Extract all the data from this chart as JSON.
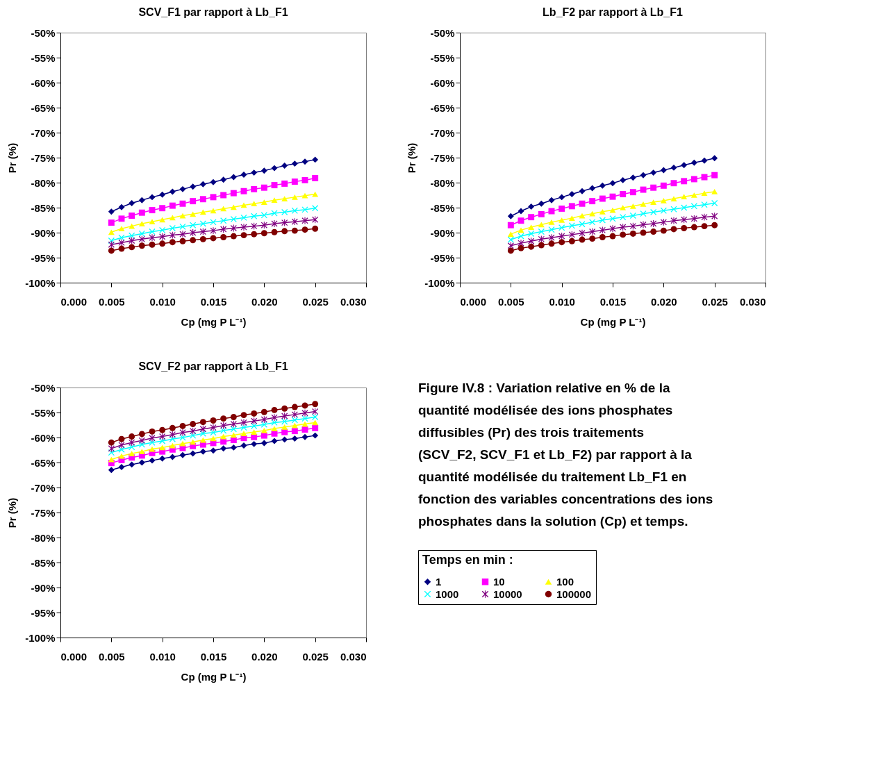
{
  "chart_data": [
    {
      "type": "line",
      "title": "SCV_F1 par rapport à Lb_F1",
      "xlabel": "Cp (mg P L⁻¹)",
      "ylabel": "Pr (%)",
      "grid": false,
      "legend": false,
      "line_style": "solid",
      "x": [
        0.005,
        0.006,
        0.007,
        0.008,
        0.009,
        0.01,
        0.011,
        0.012,
        0.013,
        0.014,
        0.015,
        0.016,
        0.017,
        0.018,
        0.019,
        0.02,
        0.021,
        0.022,
        0.023,
        0.024,
        0.025
      ],
      "xlim": [
        0,
        0.03
      ],
      "xticks": [
        {
          "value": 0,
          "label": "0.000"
        },
        {
          "value": 0.005,
          "label": "0.005"
        },
        {
          "value": 0.01,
          "label": "0.010"
        },
        {
          "value": 0.015,
          "label": "0.015"
        },
        {
          "value": 0.02,
          "label": "0.020"
        },
        {
          "value": 0.025,
          "label": "0.025"
        },
        {
          "value": 0.03,
          "label": "0.030"
        }
      ],
      "ylim": [
        -100,
        -50
      ],
      "yticks": [
        {
          "value": -100,
          "label": "-100%"
        },
        {
          "value": -95,
          "label": "-95%"
        },
        {
          "value": -90,
          "label": "-90%"
        },
        {
          "value": -85,
          "label": "-85%"
        },
        {
          "value": -80,
          "label": "-80%"
        },
        {
          "value": -75,
          "label": "-75%"
        },
        {
          "value": -70,
          "label": "-70%"
        },
        {
          "value": -65,
          "label": "-65%"
        },
        {
          "value": -60,
          "label": "-60%"
        },
        {
          "value": -55,
          "label": "-55%"
        },
        {
          "value": -50,
          "label": "-50%"
        }
      ],
      "series": [
        {
          "color": "#000080",
          "marker": "diamond",
          "values": [
            -85.8,
            -84.9,
            -84.1,
            -83.5,
            -82.9,
            -82.4,
            -81.8,
            -81.3,
            -80.8,
            -80.3,
            -79.9,
            -79.4,
            -78.9,
            -78.4,
            -78.0,
            -77.6,
            -77.1,
            -76.6,
            -76.2,
            -75.8,
            -75.4
          ]
        },
        {
          "color": "#ff00ff",
          "marker": "square",
          "values": [
            -88.0,
            -87.2,
            -86.6,
            -86.0,
            -85.5,
            -85.1,
            -84.6,
            -84.2,
            -83.7,
            -83.3,
            -82.9,
            -82.5,
            -82.1,
            -81.7,
            -81.3,
            -81.0,
            -80.5,
            -80.2,
            -79.8,
            -79.5,
            -79.1
          ]
        },
        {
          "color": "#ffff00",
          "marker": "triangle",
          "values": [
            -89.9,
            -89.2,
            -88.7,
            -88.2,
            -87.8,
            -87.4,
            -87.0,
            -86.6,
            -86.3,
            -85.9,
            -85.6,
            -85.2,
            -84.9,
            -84.5,
            -84.2,
            -83.9,
            -83.5,
            -83.2,
            -82.9,
            -82.6,
            -82.3
          ]
        },
        {
          "color": "#00ffff",
          "marker": "cross",
          "values": [
            -91.6,
            -91.0,
            -90.6,
            -90.2,
            -89.8,
            -89.5,
            -89.1,
            -88.8,
            -88.5,
            -88.2,
            -87.9,
            -87.6,
            -87.3,
            -87.0,
            -86.7,
            -86.5,
            -86.1,
            -85.9,
            -85.6,
            -85.4,
            -85.1
          ]
        },
        {
          "color": "#800080",
          "marker": "star",
          "values": [
            -92.4,
            -92.0,
            -91.6,
            -91.3,
            -91.0,
            -90.8,
            -90.5,
            -90.3,
            -90.0,
            -89.8,
            -89.6,
            -89.3,
            -89.1,
            -88.9,
            -88.7,
            -88.5,
            -88.2,
            -88.0,
            -87.8,
            -87.6,
            -87.4
          ]
        },
        {
          "color": "#800000",
          "marker": "circle",
          "values": [
            -93.6,
            -93.2,
            -92.9,
            -92.6,
            -92.4,
            -92.2,
            -91.9,
            -91.7,
            -91.5,
            -91.3,
            -91.1,
            -90.9,
            -90.7,
            -90.5,
            -90.3,
            -90.1,
            -89.9,
            -89.7,
            -89.6,
            -89.4,
            -89.2
          ]
        }
      ]
    },
    {
      "type": "line",
      "title": "Lb_F2 par rapport à Lb_F1",
      "xlabel": "Cp (mg P L⁻¹)",
      "ylabel": "Pr (%)",
      "grid": false,
      "legend": false,
      "line_style": "solid",
      "x": [
        0.005,
        0.006,
        0.007,
        0.008,
        0.009,
        0.01,
        0.011,
        0.012,
        0.013,
        0.014,
        0.015,
        0.016,
        0.017,
        0.018,
        0.019,
        0.02,
        0.021,
        0.022,
        0.023,
        0.024,
        0.025
      ],
      "xlim": [
        0,
        0.03
      ],
      "xticks": [
        {
          "value": 0,
          "label": "0.000"
        },
        {
          "value": 0.005,
          "label": "0.005"
        },
        {
          "value": 0.01,
          "label": "0.010"
        },
        {
          "value": 0.015,
          "label": "0.015"
        },
        {
          "value": 0.02,
          "label": "0.020"
        },
        {
          "value": 0.025,
          "label": "0.025"
        },
        {
          "value": 0.03,
          "label": "0.030"
        }
      ],
      "ylim": [
        -100,
        -50
      ],
      "yticks": [
        {
          "value": -100,
          "label": "-100%"
        },
        {
          "value": -95,
          "label": "-95%"
        },
        {
          "value": -90,
          "label": "-90%"
        },
        {
          "value": -85,
          "label": "-85%"
        },
        {
          "value": -80,
          "label": "-80%"
        },
        {
          "value": -75,
          "label": "-75%"
        },
        {
          "value": -70,
          "label": "-70%"
        },
        {
          "value": -65,
          "label": "-65%"
        },
        {
          "value": -60,
          "label": "-60%"
        },
        {
          "value": -55,
          "label": "-55%"
        },
        {
          "value": -50,
          "label": "-50%"
        }
      ],
      "series": [
        {
          "color": "#000080",
          "marker": "diamond",
          "values": [
            -86.7,
            -85.7,
            -84.8,
            -84.2,
            -83.5,
            -82.9,
            -82.3,
            -81.7,
            -81.1,
            -80.6,
            -80.1,
            -79.5,
            -79.0,
            -78.5,
            -78.0,
            -77.5,
            -77.0,
            -76.5,
            -76.0,
            -75.6,
            -75.1
          ]
        },
        {
          "color": "#ff00ff",
          "marker": "square",
          "values": [
            -88.5,
            -87.6,
            -86.9,
            -86.3,
            -85.7,
            -85.2,
            -84.7,
            -84.2,
            -83.7,
            -83.2,
            -82.8,
            -82.3,
            -81.9,
            -81.4,
            -81.0,
            -80.6,
            -80.1,
            -79.7,
            -79.3,
            -78.9,
            -78.5
          ]
        },
        {
          "color": "#ffff00",
          "marker": "triangle",
          "values": [
            -90.3,
            -89.5,
            -88.9,
            -88.4,
            -87.9,
            -87.5,
            -87.1,
            -86.6,
            -86.2,
            -85.8,
            -85.5,
            -85.0,
            -84.7,
            -84.3,
            -83.9,
            -83.6,
            -83.2,
            -82.8,
            -82.5,
            -82.1,
            -81.8
          ]
        },
        {
          "color": "#00ffff",
          "marker": "cross",
          "values": [
            -91.4,
            -90.7,
            -90.2,
            -89.8,
            -89.4,
            -89.0,
            -88.6,
            -88.3,
            -87.9,
            -87.5,
            -87.2,
            -86.9,
            -86.6,
            -86.2,
            -85.9,
            -85.6,
            -85.3,
            -85.0,
            -84.7,
            -84.4,
            -84.1
          ]
        },
        {
          "color": "#800080",
          "marker": "star",
          "values": [
            -92.6,
            -92.1,
            -91.7,
            -91.3,
            -91.0,
            -90.7,
            -90.4,
            -90.1,
            -89.8,
            -89.5,
            -89.2,
            -88.9,
            -88.7,
            -88.4,
            -88.2,
            -87.9,
            -87.6,
            -87.4,
            -87.2,
            -86.9,
            -86.7
          ]
        },
        {
          "color": "#800000",
          "marker": "circle",
          "values": [
            -93.6,
            -93.1,
            -92.8,
            -92.5,
            -92.2,
            -91.9,
            -91.7,
            -91.4,
            -91.2,
            -90.9,
            -90.7,
            -90.4,
            -90.2,
            -90.0,
            -89.8,
            -89.6,
            -89.3,
            -89.1,
            -88.9,
            -88.7,
            -88.5
          ]
        }
      ]
    },
    {
      "type": "line",
      "title": "SCV_F2 par rapport à Lb_F1",
      "xlabel": "Cp (mg P L⁻¹)",
      "ylabel": "Pr (%)",
      "grid": false,
      "legend": "right",
      "legend_title": "Temps en min :",
      "line_style": "solid",
      "annotations": [
        "Figure IV.8 : Variation relative en % de la quantité modélisée des ions phosphates diffusibles (Pr) des trois traitements (SCV_F2, SCV_F1 et Lb_F2) par rapport à la quantité modélisée du traitement Lb_F1 en fonction des variables concentrations des ions phosphates dans la solution (Cp) et temps."
      ],
      "x": [
        0.005,
        0.006,
        0.007,
        0.008,
        0.009,
        0.01,
        0.011,
        0.012,
        0.013,
        0.014,
        0.015,
        0.016,
        0.017,
        0.018,
        0.019,
        0.02,
        0.021,
        0.022,
        0.023,
        0.024,
        0.025
      ],
      "xlim": [
        0,
        0.03
      ],
      "xticks": [
        {
          "value": 0,
          "label": "0.000"
        },
        {
          "value": 0.005,
          "label": "0.005"
        },
        {
          "value": 0.01,
          "label": "0.010"
        },
        {
          "value": 0.015,
          "label": "0.015"
        },
        {
          "value": 0.02,
          "label": "0.020"
        },
        {
          "value": 0.025,
          "label": "0.025"
        },
        {
          "value": 0.03,
          "label": "0.030"
        }
      ],
      "ylim": [
        -100,
        -50
      ],
      "yticks": [
        {
          "value": -100,
          "label": "-100%"
        },
        {
          "value": -95,
          "label": "-95%"
        },
        {
          "value": -90,
          "label": "-90%"
        },
        {
          "value": -85,
          "label": "-85%"
        },
        {
          "value": -80,
          "label": "-80%"
        },
        {
          "value": -75,
          "label": "-75%"
        },
        {
          "value": -70,
          "label": "-70%"
        },
        {
          "value": -65,
          "label": "-65%"
        },
        {
          "value": -60,
          "label": "-60%"
        },
        {
          "value": -55,
          "label": "-55%"
        },
        {
          "value": -50,
          "label": "-50%"
        }
      ],
      "series": [
        {
          "name": "1",
          "color": "#000080",
          "marker": "diamond",
          "values": [
            -66.5,
            -65.9,
            -65.4,
            -65.0,
            -64.6,
            -64.2,
            -63.9,
            -63.5,
            -63.2,
            -62.8,
            -62.6,
            -62.2,
            -62.0,
            -61.6,
            -61.3,
            -61.1,
            -60.7,
            -60.4,
            -60.2,
            -59.9,
            -59.6
          ]
        },
        {
          "name": "10",
          "color": "#ff00ff",
          "marker": "square",
          "values": [
            -65.1,
            -64.5,
            -64.0,
            -63.6,
            -63.1,
            -62.8,
            -62.4,
            -62.1,
            -61.7,
            -61.4,
            -61.1,
            -60.8,
            -60.5,
            -60.1,
            -59.9,
            -59.6,
            -59.2,
            -58.9,
            -58.7,
            -58.4,
            -58.1
          ]
        },
        {
          "name": "100",
          "color": "#ffff00",
          "marker": "triangle",
          "values": [
            -64.4,
            -63.7,
            -63.2,
            -62.8,
            -62.3,
            -62.0,
            -61.6,
            -61.2,
            -60.9,
            -60.5,
            -60.2,
            -59.8,
            -59.5,
            -59.2,
            -58.9,
            -58.6,
            -58.2,
            -57.9,
            -57.6,
            -57.3,
            -57.0
          ]
        },
        {
          "name": "1000",
          "color": "#00ffff",
          "marker": "cross",
          "values": [
            -63.0,
            -62.4,
            -61.9,
            -61.4,
            -61.0,
            -60.7,
            -60.3,
            -60.0,
            -59.6,
            -59.2,
            -59.0,
            -58.6,
            -58.3,
            -58.0,
            -57.7,
            -57.4,
            -57.0,
            -56.8,
            -56.5,
            -56.2,
            -55.9
          ]
        },
        {
          "name": "10000",
          "color": "#800080",
          "marker": "star",
          "values": [
            -62.2,
            -61.5,
            -61.0,
            -60.6,
            -60.1,
            -59.8,
            -59.4,
            -59.0,
            -58.7,
            -58.3,
            -58.0,
            -57.6,
            -57.3,
            -57.0,
            -56.7,
            -56.4,
            -56.0,
            -55.7,
            -55.4,
            -55.1,
            -54.8
          ]
        },
        {
          "name": "100000",
          "color": "#800000",
          "marker": "circle",
          "values": [
            -61.0,
            -60.3,
            -59.8,
            -59.3,
            -58.8,
            -58.5,
            -58.1,
            -57.7,
            -57.3,
            -56.9,
            -56.6,
            -56.2,
            -55.9,
            -55.5,
            -55.2,
            -54.9,
            -54.5,
            -54.2,
            -53.9,
            -53.6,
            -53.3
          ]
        }
      ]
    }
  ]
}
